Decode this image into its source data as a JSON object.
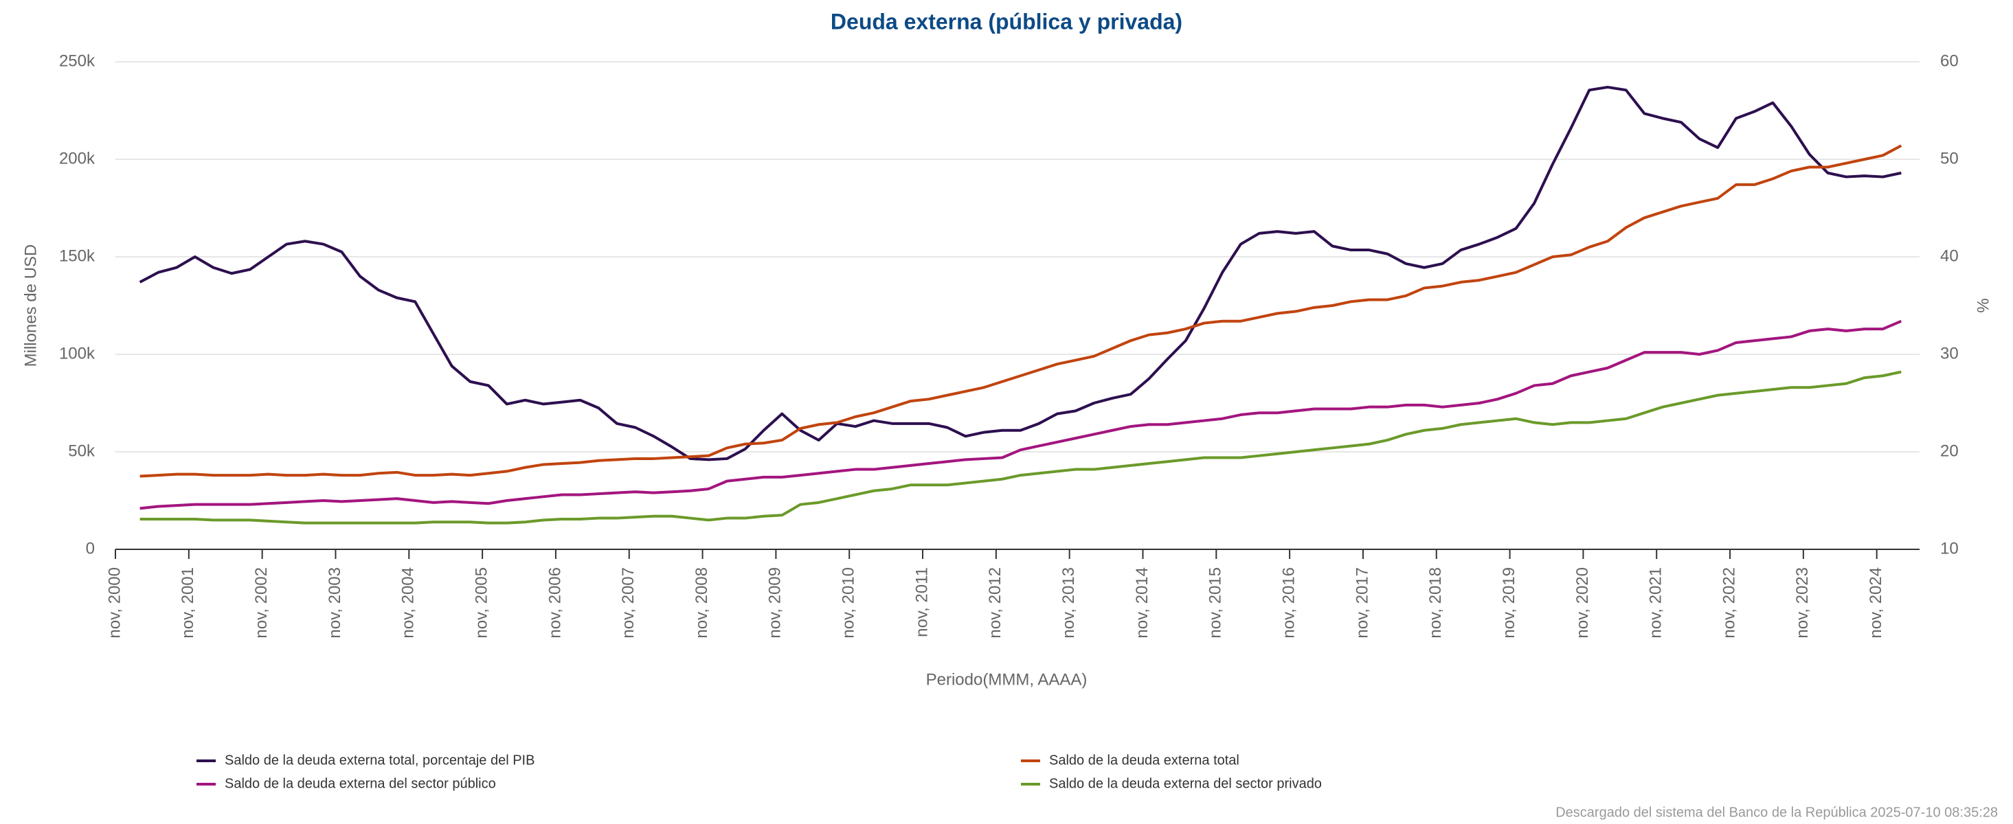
{
  "chart_data": {
    "type": "line",
    "title": "Deuda externa (pública y privada)",
    "x_label": "Periodo(MMM, AAAA)",
    "y_label": "Millones de USD",
    "y2_label": "%",
    "footer": "Descargado del sistema del Banco de la República 2025-07-10 08:35:28",
    "legend": "bottom",
    "grid": true,
    "xlim": [
      "2000-11",
      "2025-06"
    ],
    "xticks": [
      {
        "value": "2000-11",
        "label": "nov, 2000"
      },
      {
        "value": "2001-11",
        "label": "nov, 2001"
      },
      {
        "value": "2002-11",
        "label": "nov, 2002"
      },
      {
        "value": "2003-11",
        "label": "nov, 2003"
      },
      {
        "value": "2004-11",
        "label": "nov, 2004"
      },
      {
        "value": "2005-11",
        "label": "nov, 2005"
      },
      {
        "value": "2006-11",
        "label": "nov, 2006"
      },
      {
        "value": "2007-11",
        "label": "nov, 2007"
      },
      {
        "value": "2008-11",
        "label": "nov, 2008"
      },
      {
        "value": "2009-11",
        "label": "nov, 2009"
      },
      {
        "value": "2010-11",
        "label": "nov, 2010"
      },
      {
        "value": "2011-11",
        "label": "nov, 2011"
      },
      {
        "value": "2012-11",
        "label": "nov, 2012"
      },
      {
        "value": "2013-11",
        "label": "nov, 2013"
      },
      {
        "value": "2014-11",
        "label": "nov, 2014"
      },
      {
        "value": "2015-11",
        "label": "nov, 2015"
      },
      {
        "value": "2016-11",
        "label": "nov, 2016"
      },
      {
        "value": "2017-11",
        "label": "nov, 2017"
      },
      {
        "value": "2018-11",
        "label": "nov, 2018"
      },
      {
        "value": "2019-11",
        "label": "nov, 2019"
      },
      {
        "value": "2020-11",
        "label": "nov, 2020"
      },
      {
        "value": "2021-11",
        "label": "nov, 2021"
      },
      {
        "value": "2022-11",
        "label": "nov, 2022"
      },
      {
        "value": "2023-11",
        "label": "nov, 2023"
      },
      {
        "value": "2024-11",
        "label": "nov, 2024"
      }
    ],
    "ylim": [
      0,
      250000
    ],
    "yticks": [
      0,
      {
        "value": 50000,
        "label": "50k"
      },
      {
        "value": 100000,
        "label": "100k"
      },
      {
        "value": 150000,
        "label": "150k"
      },
      {
        "value": 200000,
        "label": "200k"
      },
      {
        "value": 250000,
        "label": "250k"
      }
    ],
    "y2lim": [
      10,
      60
    ],
    "y2ticks": [
      10,
      20,
      30,
      40,
      50,
      60
    ],
    "x": [
      "2001-03",
      "2001-06",
      "2001-09",
      "2001-12",
      "2002-03",
      "2002-06",
      "2002-09",
      "2002-12",
      "2003-03",
      "2003-06",
      "2003-09",
      "2003-12",
      "2004-03",
      "2004-06",
      "2004-09",
      "2004-12",
      "2005-03",
      "2005-06",
      "2005-09",
      "2005-12",
      "2006-03",
      "2006-06",
      "2006-09",
      "2006-12",
      "2007-03",
      "2007-06",
      "2007-09",
      "2007-12",
      "2008-03",
      "2008-06",
      "2008-09",
      "2008-12",
      "2009-03",
      "2009-06",
      "2009-09",
      "2009-12",
      "2010-03",
      "2010-06",
      "2010-09",
      "2010-12",
      "2011-03",
      "2011-06",
      "2011-09",
      "2011-12",
      "2012-03",
      "2012-06",
      "2012-09",
      "2012-12",
      "2013-03",
      "2013-06",
      "2013-09",
      "2013-12",
      "2014-03",
      "2014-06",
      "2014-09",
      "2014-12",
      "2015-03",
      "2015-06",
      "2015-09",
      "2015-12",
      "2016-03",
      "2016-06",
      "2016-09",
      "2016-12",
      "2017-03",
      "2017-06",
      "2017-09",
      "2017-12",
      "2018-03",
      "2018-06",
      "2018-09",
      "2018-12",
      "2019-03",
      "2019-06",
      "2019-09",
      "2019-12",
      "2020-03",
      "2020-06",
      "2020-09",
      "2020-12",
      "2021-03",
      "2021-06",
      "2021-09",
      "2021-12",
      "2022-03",
      "2022-06",
      "2022-09",
      "2022-12",
      "2023-03",
      "2023-06",
      "2023-09",
      "2023-12",
      "2024-03",
      "2024-06",
      "2024-09",
      "2024-12",
      "2025-03"
    ],
    "series": [
      {
        "name": "Saldo de la deuda externa total, porcentaje del PIB",
        "color": "#2d0f4f",
        "axis": "y2",
        "values": [
          37.4,
          38.4,
          38.9,
          40.0,
          38.9,
          38.3,
          38.7,
          40.0,
          41.3,
          41.6,
          41.3,
          40.5,
          38.0,
          36.6,
          35.8,
          35.4,
          32.1,
          28.8,
          27.2,
          26.8,
          24.9,
          25.3,
          24.9,
          25.1,
          25.3,
          24.5,
          22.9,
          22.5,
          21.6,
          20.5,
          19.3,
          19.2,
          19.3,
          20.3,
          22.2,
          23.9,
          22.2,
          21.2,
          22.9,
          22.6,
          23.2,
          22.9,
          22.9,
          22.9,
          22.5,
          21.6,
          22.0,
          22.2,
          22.2,
          22.9,
          23.9,
          24.2,
          25.0,
          25.5,
          25.9,
          27.5,
          29.5,
          31.4,
          34.7,
          38.4,
          41.3,
          42.4,
          42.6,
          42.4,
          42.6,
          41.1,
          40.7,
          40.7,
          40.3,
          39.3,
          38.9,
          39.3,
          40.7,
          41.3,
          42.0,
          42.9,
          45.5,
          49.5,
          53.2,
          57.1,
          57.4,
          57.1,
          54.7,
          54.2,
          53.8,
          52.1,
          51.2,
          54.2,
          54.9,
          55.8,
          53.4,
          50.5,
          48.6,
          48.2,
          48.3,
          48.2,
          48.6
        ]
      },
      {
        "name": "Saldo de la deuda externa total",
        "color": "#c1440e",
        "values": [
          37500,
          38000,
          38500,
          38500,
          38000,
          38000,
          38000,
          38500,
          38000,
          38000,
          38500,
          38000,
          38000,
          39000,
          39500,
          38000,
          38000,
          38500,
          38000,
          39000,
          40000,
          42000,
          43500,
          44000,
          44500,
          45500,
          46000,
          46500,
          46500,
          47000,
          47500,
          48000,
          52000,
          54000,
          54500,
          56000,
          62000,
          64000,
          65000,
          68000,
          70000,
          73000,
          76000,
          77000,
          79000,
          81000,
          83000,
          86000,
          89000,
          92000,
          95000,
          97000,
          99000,
          103000,
          107000,
          110000,
          111000,
          113000,
          116000,
          117000,
          117000,
          119000,
          121000,
          122000,
          124000,
          125000,
          127000,
          128000,
          128000,
          130000,
          134000,
          135000,
          137000,
          138000,
          140000,
          142000,
          146000,
          150000,
          151000,
          155000,
          158000,
          165000,
          170000,
          173000,
          176000,
          178000,
          180000,
          187000,
          187000,
          190000,
          194000,
          196000,
          196000,
          198000,
          200000,
          202000,
          207000
        ]
      },
      {
        "name": "Saldo de la deuda externa del sector público",
        "color": "#a3157e",
        "values": [
          21000,
          22000,
          22500,
          23000,
          23000,
          23000,
          23000,
          23500,
          24000,
          24500,
          25000,
          24500,
          25000,
          25500,
          26000,
          25000,
          24000,
          24500,
          24000,
          23500,
          25000,
          26000,
          27000,
          28000,
          28000,
          28500,
          29000,
          29500,
          29000,
          29500,
          30000,
          31000,
          35000,
          36000,
          37000,
          37000,
          38000,
          39000,
          40000,
          41000,
          41000,
          42000,
          43000,
          44000,
          45000,
          46000,
          46500,
          47000,
          51000,
          53000,
          55000,
          57000,
          59000,
          61000,
          63000,
          64000,
          64000,
          65000,
          66000,
          67000,
          69000,
          70000,
          70000,
          71000,
          72000,
          72000,
          72000,
          73000,
          73000,
          74000,
          74000,
          73000,
          74000,
          75000,
          77000,
          80000,
          84000,
          85000,
          89000,
          91000,
          93000,
          97000,
          101000,
          101000,
          101000,
          100000,
          102000,
          106000,
          107000,
          108000,
          109000,
          112000,
          113000,
          112000,
          113000,
          113000,
          117000
        ]
      },
      {
        "name": "Saldo de la deuda externa del sector privado",
        "color": "#6b9a2a",
        "values": [
          15500,
          15500,
          15500,
          15500,
          15000,
          15000,
          15000,
          14500,
          14000,
          13500,
          13500,
          13500,
          13500,
          13500,
          13500,
          13500,
          14000,
          14000,
          14000,
          13500,
          13500,
          14000,
          15000,
          15500,
          15500,
          16000,
          16000,
          16500,
          17000,
          17000,
          16000,
          15000,
          16000,
          16000,
          17000,
          17500,
          23000,
          24000,
          26000,
          28000,
          30000,
          31000,
          33000,
          33000,
          33000,
          34000,
          35000,
          36000,
          38000,
          39000,
          40000,
          41000,
          41000,
          42000,
          43000,
          44000,
          45000,
          46000,
          47000,
          47000,
          47000,
          48000,
          49000,
          50000,
          51000,
          52000,
          53000,
          54000,
          56000,
          59000,
          61000,
          62000,
          64000,
          65000,
          66000,
          67000,
          65000,
          64000,
          65000,
          65000,
          66000,
          67000,
          70000,
          73000,
          75000,
          77000,
          79000,
          80000,
          81000,
          82000,
          83000,
          83000,
          84000,
          85000,
          88000,
          89000,
          91000
        ]
      }
    ]
  }
}
